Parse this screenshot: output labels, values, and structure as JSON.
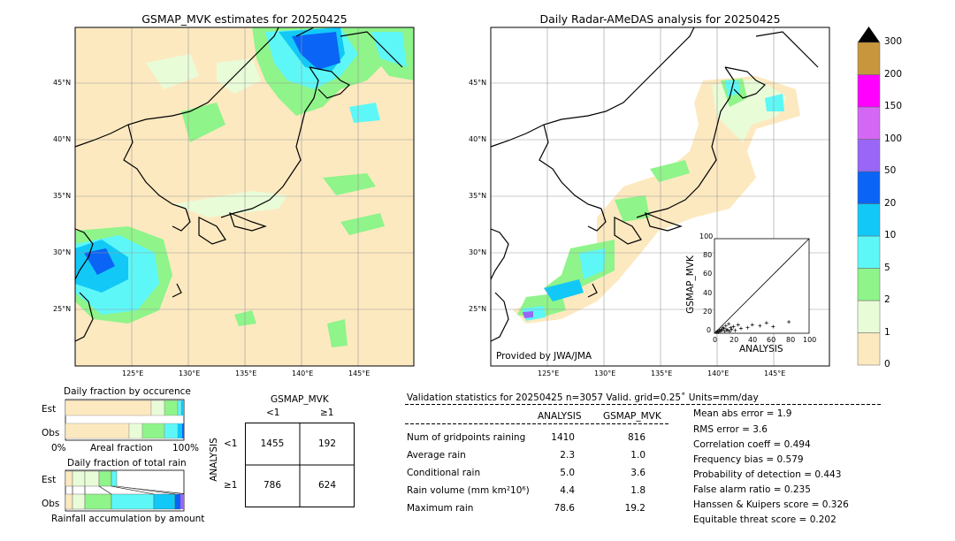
{
  "left_map": {
    "title": "GSMAP_MVK estimates for 20250425",
    "lat_labels": [
      "45°N",
      "40°N",
      "35°N",
      "30°N",
      "25°N"
    ],
    "lon_labels": [
      "125°E",
      "130°E",
      "135°E",
      "140°E",
      "145°E"
    ]
  },
  "right_map": {
    "title": "Daily Radar-AMeDAS analysis for 20250425",
    "lat_labels": [
      "45°N",
      "40°N",
      "35°N",
      "30°N",
      "25°N"
    ],
    "lon_labels": [
      "125°E",
      "130°E",
      "135°E",
      "140°E",
      "145°E"
    ],
    "credit": "Provided by JWA/JMA"
  },
  "inset_scatter": {
    "xlabel": "ANALYSIS",
    "ylabel": "GSMAP_MVK",
    "ticks": [
      "0",
      "20",
      "40",
      "60",
      "80",
      "100"
    ]
  },
  "colorbar": {
    "labels": [
      "0",
      "1",
      "2",
      "5",
      "10",
      "20",
      "50",
      "100",
      "150",
      "200",
      "300"
    ],
    "colors": [
      "#fde9c0",
      "#e9fcd8",
      "#8ff48a",
      "#5ef7f7",
      "#12c8f7",
      "#0a64f5",
      "#9966f7",
      "#d567f5",
      "#ff00ff",
      "#c8963c"
    ],
    "extend_color": "#000000"
  },
  "fraction_occurrence": {
    "title": "Daily fraction by occurence",
    "row_labels": [
      "Est",
      "Obs"
    ],
    "axis_left": "0%",
    "axis_mid": "Areal fraction",
    "axis_right": "100%"
  },
  "fraction_rain": {
    "title": "Daily fraction of total rain",
    "row_labels": [
      "Est",
      "Obs"
    ],
    "axis_caption": "Rainfall accumulation by amount"
  },
  "contingency": {
    "title": "GSMAP_MVK",
    "col_labels": [
      "<1",
      "≥1"
    ],
    "row_axis": "ANALYSIS",
    "row_labels": [
      "<1",
      "≥1"
    ],
    "cells": [
      [
        "1455",
        "192"
      ],
      [
        "786",
        "624"
      ]
    ]
  },
  "validation": {
    "header": "Validation statistics for 20250425  n=3057 Valid. grid=0.25˚ Units=mm/day",
    "col_analysis": "ANALYSIS",
    "col_gsmap": "GSMAP_MVK",
    "rows": [
      {
        "label": "Num of gridpoints raining",
        "analysis": "1410",
        "gsmap": "816"
      },
      {
        "label": "Average rain",
        "analysis": "2.3",
        "gsmap": "1.0"
      },
      {
        "label": "Conditional rain",
        "analysis": "5.0",
        "gsmap": "3.6"
      },
      {
        "label": "Rain volume (mm km²10⁶)",
        "analysis": "4.4",
        "gsmap": "1.8"
      },
      {
        "label": "Maximum rain",
        "analysis": "78.6",
        "gsmap": "19.2"
      }
    ],
    "scores": [
      "Mean abs error =    1.9",
      "RMS error =    3.6",
      "Correlation coeff =  0.494",
      "Frequency bias =  0.579",
      "Probability of detection =  0.443",
      "False alarm ratio =  0.235",
      "Hanssen & Kuipers score =  0.326",
      "Equitable threat score =  0.202"
    ]
  },
  "chart_data": {
    "type": "scatter",
    "xlabel": "ANALYSIS",
    "ylabel": "GSMAP_MVK",
    "xlim": [
      0,
      100
    ],
    "ylim": [
      0,
      100
    ],
    "points": [
      [
        2,
        1
      ],
      [
        3,
        2
      ],
      [
        4,
        1
      ],
      [
        5,
        3
      ],
      [
        6,
        2
      ],
      [
        7,
        4
      ],
      [
        8,
        3
      ],
      [
        9,
        6
      ],
      [
        10,
        5
      ],
      [
        11,
        2
      ],
      [
        12,
        8
      ],
      [
        13,
        4
      ],
      [
        14,
        3
      ],
      [
        15,
        10
      ],
      [
        16,
        2
      ],
      [
        17,
        6
      ],
      [
        18,
        4
      ],
      [
        20,
        7
      ],
      [
        22,
        3
      ],
      [
        25,
        9
      ],
      [
        28,
        5
      ],
      [
        35,
        6
      ],
      [
        40,
        9
      ],
      [
        48,
        8
      ],
      [
        55,
        11
      ],
      [
        62,
        7
      ],
      [
        78.6,
        12
      ]
    ]
  }
}
